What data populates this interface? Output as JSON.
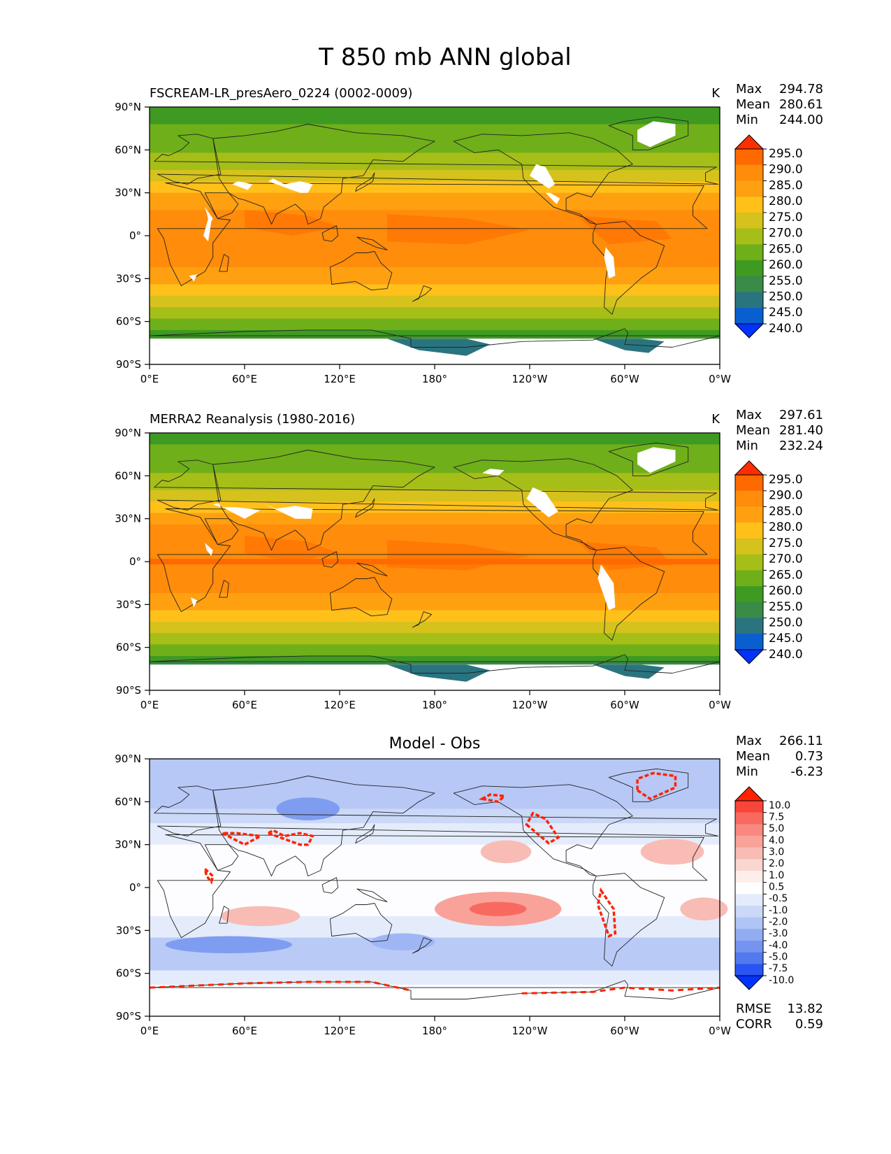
{
  "title": "T 850 mb ANN global",
  "panels": [
    {
      "subtitle": "FSCREAM-LR_presAero_0224 (0002-0009)",
      "units": "K",
      "stats": {
        "max": "294.78",
        "mean": "280.61",
        "min": "244.00"
      },
      "colorbar": {
        "ticks": [
          "295.0",
          "290.0",
          "285.0",
          "280.0",
          "275.0",
          "270.0",
          "265.0",
          "260.0",
          "255.0",
          "250.0",
          "245.0",
          "240.0"
        ],
        "colors": [
          "#ff2e00",
          "#ff6a00",
          "#ff8c0a",
          "#ffa010",
          "#ffc01a",
          "#d6c21c",
          "#a6be18",
          "#6faf1a",
          "#3f9a22",
          "#3a8a48",
          "#2a7480",
          "#0a5fd0",
          "#0033ff"
        ]
      }
    },
    {
      "subtitle": "MERRA2 Reanalysis (1980-2016)",
      "units": "K",
      "stats": {
        "max": "297.61",
        "mean": "281.40",
        "min": "232.24"
      },
      "colorbar": {
        "ticks": [
          "295.0",
          "290.0",
          "285.0",
          "280.0",
          "275.0",
          "270.0",
          "265.0",
          "260.0",
          "255.0",
          "250.0",
          "245.0",
          "240.0"
        ],
        "colors": [
          "#ff2e00",
          "#ff6a00",
          "#ff8c0a",
          "#ffa010",
          "#ffc01a",
          "#d6c21c",
          "#a6be18",
          "#6faf1a",
          "#3f9a22",
          "#3a8a48",
          "#2a7480",
          "#0a5fd0",
          "#0033ff"
        ]
      }
    },
    {
      "subtitle": "Model - Obs",
      "units": "",
      "stats": {
        "max": "266.11",
        "mean": "0.73",
        "min": "-6.23"
      },
      "metrics": {
        "rmse_label": "RMSE",
        "rmse": "13.82",
        "corr_label": "CORR",
        "corr": "0.59"
      },
      "colorbar": {
        "ticks": [
          "10.0",
          "7.5",
          "5.0",
          "4.0",
          "3.0",
          "2.0",
          "1.0",
          "0.5",
          "-0.5",
          "-1.0",
          "-2.0",
          "-3.0",
          "-4.0",
          "-5.0",
          "-7.5",
          "-10.0"
        ],
        "colors": [
          "#ff2200",
          "#f8453a",
          "#f86a60",
          "#f88880",
          "#f8a29a",
          "#f8bcb4",
          "#fad6d0",
          "#fdeeec",
          "#ffffff",
          "#e4ecfb",
          "#cbd8f8",
          "#b0c4f5",
          "#92acf2",
          "#7494ef",
          "#5279ee",
          "#2a55f2",
          "#0033ff"
        ]
      }
    }
  ],
  "axes": {
    "x_ticks": [
      "0°E",
      "60°E",
      "120°E",
      "180°",
      "120°W",
      "60°W",
      "0°W"
    ],
    "y_ticks": [
      "90°N",
      "60°N",
      "30°N",
      "0°",
      "30°S",
      "60°S",
      "90°S"
    ]
  },
  "chart_data": [
    {
      "type": "heatmap",
      "title": "FSCREAM-LR_presAero_0224 (0002-0009)",
      "units": "K",
      "x_range": [
        "0°E",
        "0°W"
      ],
      "y_range": [
        "90°S",
        "90°N"
      ],
      "levels": [
        240,
        245,
        250,
        255,
        260,
        265,
        270,
        275,
        280,
        285,
        290,
        295
      ],
      "zonal_profile": {
        "lat": [
          90,
          75,
          60,
          45,
          30,
          15,
          0,
          -15,
          -30,
          -45,
          -60,
          -75
        ],
        "value": [
          257,
          261,
          264,
          271,
          280,
          287,
          289,
          288,
          282,
          273,
          264,
          256
        ]
      },
      "max": 294.78,
      "mean": 280.61,
      "min": 244.0
    },
    {
      "type": "heatmap",
      "title": "MERRA2 Reanalysis (1980-2016)",
      "units": "K",
      "x_range": [
        "0°E",
        "0°W"
      ],
      "y_range": [
        "90°S",
        "90°N"
      ],
      "levels": [
        240,
        245,
        250,
        255,
        260,
        265,
        270,
        275,
        280,
        285,
        290,
        295
      ],
      "zonal_profile": {
        "lat": [
          90,
          75,
          60,
          45,
          30,
          15,
          0,
          -15,
          -30,
          -45,
          -60,
          -75
        ],
        "value": [
          257,
          262,
          266,
          272,
          283,
          289,
          290,
          288,
          282,
          272,
          263,
          252
        ]
      },
      "max": 297.61,
      "mean": 281.4,
      "min": 232.24
    },
    {
      "type": "heatmap",
      "title": "Model - Obs",
      "x_range": [
        "0°E",
        "0°W"
      ],
      "y_range": [
        "90°S",
        "90°N"
      ],
      "levels": [
        -10,
        -7.5,
        -5,
        -4,
        -3,
        -2,
        -1,
        -0.5,
        0.5,
        1,
        2,
        3,
        4,
        5,
        7.5,
        10
      ],
      "max": 266.11,
      "mean": 0.73,
      "min": -6.23,
      "rmse": 13.82,
      "corr": 0.59
    }
  ]
}
